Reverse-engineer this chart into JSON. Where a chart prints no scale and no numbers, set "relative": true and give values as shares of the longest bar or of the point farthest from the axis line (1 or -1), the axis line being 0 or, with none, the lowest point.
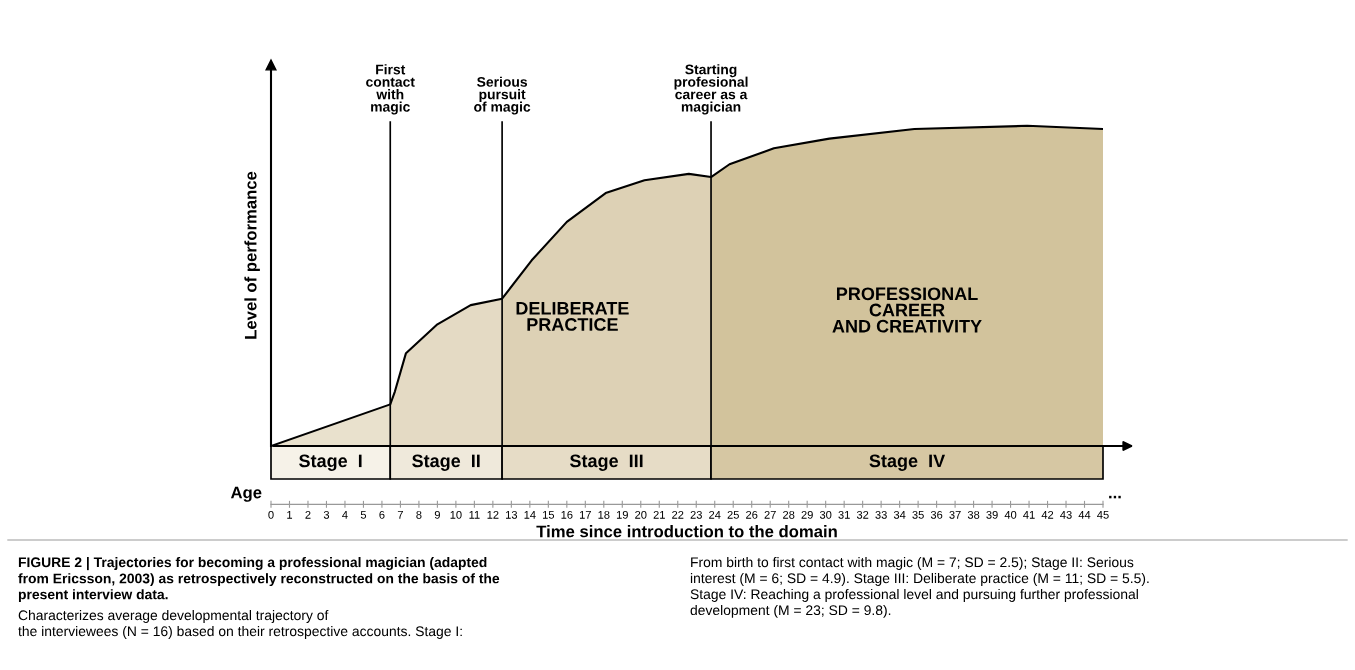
{
  "chart_data": {
    "type": "area",
    "relative": true,
    "title": "FIGURE 2 | Trajectories for becoming a professional magician (adapted\nfrom Ericsson, 2003) as retrospectively reconstructed on the basis of the\npresent interview data.",
    "xlabel": "Time since introduction to the domain",
    "ylabel": "Level of performance",
    "x": [
      0,
      6.45,
      6.7,
      7.3,
      9.0,
      10.8,
      12.5,
      14.1,
      16.0,
      18.1,
      20.2,
      22.6,
      23.8,
      24.8,
      27.2,
      30.2,
      34.8,
      40.9,
      45
    ],
    "series": [
      {
        "color": "#c9b88e",
        "values": [
          0,
          0.13,
          0.17,
          0.29,
          0.38,
          0.44,
          0.46,
          0.58,
          0.7,
          0.79,
          0.83,
          0.85,
          0.84,
          0.88,
          0.93,
          0.96,
          0.99,
          1,
          0.99
        ]
      }
    ],
    "xlim": [
      0,
      45
    ],
    "xticks": [
      0,
      1,
      2,
      3,
      4,
      5,
      6,
      7,
      8,
      9,
      10,
      11,
      12,
      13,
      14,
      15,
      16,
      17,
      18,
      19,
      20,
      21,
      22,
      23,
      24,
      25,
      26,
      27,
      28,
      29,
      30,
      31,
      32,
      33,
      34,
      35,
      36,
      37,
      38,
      39,
      40,
      41,
      42,
      43,
      44,
      45
    ],
    "ref_lines": [
      {
        "axis": "x",
        "value": 6.45,
        "label": "First\ncontact\nwith\nmagic"
      },
      {
        "axis": "x",
        "value": 12.5,
        "label": "Serious\npursuit\nof magic"
      },
      {
        "axis": "x",
        "value": 23.8,
        "label": "Starting\nprofesional\ncareer as a\nmagician"
      }
    ],
    "bands": [
      {
        "axis": "x",
        "from": 0,
        "to": 6.45,
        "label": "Stage  I",
        "color": "#f6f2e8"
      },
      {
        "axis": "x",
        "from": 6.45,
        "to": 12.5,
        "label": "Stage  II",
        "color": "#efe9db"
      },
      {
        "axis": "x",
        "from": 12.5,
        "to": 23.8,
        "label": "Stage  III",
        "color": "#e6dcc6"
      },
      {
        "axis": "x",
        "from": 23.8,
        "to": 45,
        "label": "Stage  IV",
        "color": "#d6c7a3"
      }
    ],
    "annotations": [
      "DELIBERATE\nPRACTICE",
      "PROFESSIONAL\nCAREER\nAND CREATIVITY",
      "Age",
      "...",
      "Characterizes average developmental trajectory of\nthe interviewees (N = 16) based on their retrospective accounts. Stage I:",
      "From birth to first contact with magic (M = 7; SD = 2.5); Stage II: Serious\ninterest (M = 6; SD = 4.9). Stage III: Deliberate practice (M = 11; SD = 5.5).\nStage IV: Reaching a professional level and pursuing further professional\ndevelopment (M = 23; SD = 9.8)."
    ],
    "grid": false,
    "legend": false
  }
}
